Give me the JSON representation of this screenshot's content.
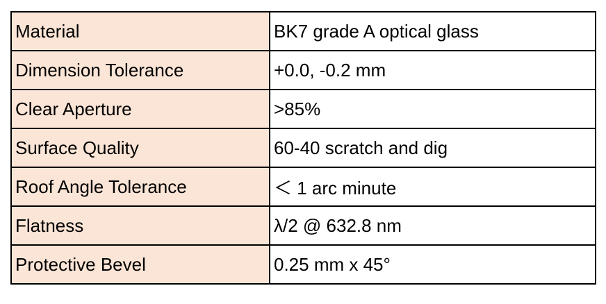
{
  "colors": {
    "label_background": "#fbe5d6",
    "value_background": "#ffffff",
    "border": "#000000"
  },
  "rows": [
    {
      "label": "Material",
      "value": "BK7 grade A optical glass"
    },
    {
      "label": "Dimension Tolerance",
      "value": "+0.0, -0.2 mm"
    },
    {
      "label": "Clear Aperture",
      "value": ">85%"
    },
    {
      "label": "Surface Quality",
      "value": "60-40 scratch and dig"
    },
    {
      "label": "Roof Angle Tolerance",
      "value": "＜ 1 arc minute"
    },
    {
      "label": "Flatness",
      "value": "λ/2 @ 632.8 nm"
    },
    {
      "label": "Protective Bevel",
      "value": "0.25 mm x 45°"
    }
  ]
}
